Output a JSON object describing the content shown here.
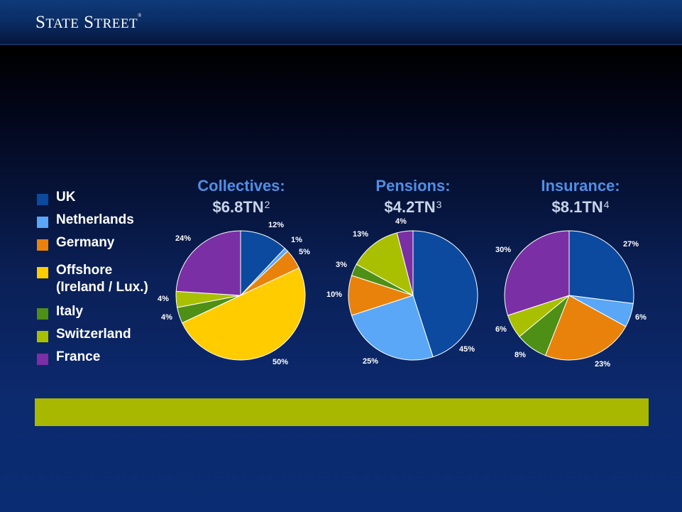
{
  "header": {
    "logo_text": "State Street",
    "logo_mark": "®"
  },
  "legend": [
    {
      "label": "UK",
      "color": "#0b4a9e"
    },
    {
      "label": "Netherlands",
      "color": "#5aa6f7"
    },
    {
      "label": "Germany",
      "color": "#e9820a"
    },
    {
      "label": "Offshore\n(Ireland / Lux.)",
      "color": "#ffcc00"
    },
    {
      "label": "Italy",
      "color": "#4e8f16"
    },
    {
      "label": "Switzerland",
      "color": "#a9c000"
    },
    {
      "label": "France",
      "color": "#7a2fa5"
    }
  ],
  "charts": [
    {
      "name": "Collectives:",
      "amount": "$6.8TN",
      "note": "2"
    },
    {
      "name": "Pensions:",
      "amount": "$4.2TN",
      "note": "3"
    },
    {
      "name": "Insurance:",
      "amount": "$8.1TN",
      "note": "4"
    }
  ],
  "chart_data": [
    {
      "type": "pie",
      "title": "Collectives: $6.8TN",
      "categories": [
        "UK",
        "Netherlands",
        "Germany",
        "Offshore (Ireland / Lux.)",
        "Italy",
        "Switzerland",
        "France"
      ],
      "values": [
        12,
        1,
        5,
        50,
        4,
        4,
        24
      ],
      "labels": [
        "12%",
        "1%",
        "5%",
        "50%",
        "4%",
        "4%",
        "24%"
      ]
    },
    {
      "type": "pie",
      "title": "Pensions: $4.2TN",
      "categories": [
        "UK",
        "Netherlands",
        "Germany",
        "Italy",
        "Switzerland",
        "France"
      ],
      "values": [
        45,
        25,
        10,
        3,
        13,
        4
      ],
      "labels": [
        "45%",
        "25%",
        "10%",
        "3%",
        "13%",
        "4%"
      ]
    },
    {
      "type": "pie",
      "title": "Insurance: $8.1TN",
      "categories": [
        "UK",
        "Netherlands",
        "Germany",
        "Italy",
        "Switzerland",
        "France"
      ],
      "values": [
        27,
        6,
        23,
        8,
        6,
        30
      ],
      "labels": [
        "27%",
        "6%",
        "23%",
        "8%",
        "6%",
        "30%"
      ]
    }
  ]
}
